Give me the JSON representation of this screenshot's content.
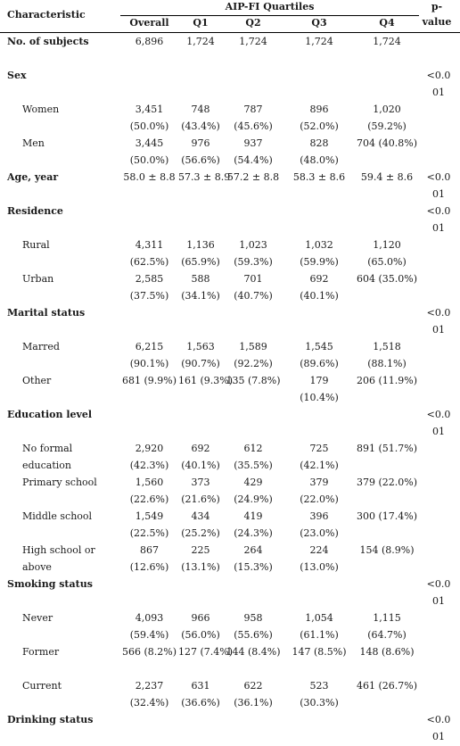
{
  "header": {
    "characteristic": "Characteristic",
    "quartiles_title": "AIP-FI Quartiles",
    "p_value": [
      "p-",
      "value"
    ],
    "columns": [
      "Overall",
      "Q1",
      "Q2",
      "Q3",
      "Q4"
    ]
  },
  "rows": [
    {
      "label": [
        "No. of subjects"
      ],
      "bold": true,
      "cells": [
        [
          "6,896"
        ],
        [
          "1,724"
        ],
        [
          "1,724"
        ],
        [
          "1,724"
        ],
        [
          "1,724"
        ]
      ],
      "p": []
    },
    {
      "label": [
        "Sex"
      ],
      "bold": true,
      "cells": [
        [],
        [],
        [],
        [],
        []
      ],
      "p": [
        "<0.0",
        "01"
      ]
    },
    {
      "label": [
        "Women"
      ],
      "sub": true,
      "cells": [
        [
          "3,451",
          "(50.0%)"
        ],
        [
          "748",
          "(43.4%)"
        ],
        [
          "787",
          "(45.6%)"
        ],
        [
          "896",
          "(52.0%)"
        ],
        [
          "1,020",
          "(59.2%)"
        ]
      ],
      "p": []
    },
    {
      "label": [
        "Men"
      ],
      "sub": true,
      "cells": [
        [
          "3,445",
          "(50.0%)"
        ],
        [
          "976",
          "(56.6%)"
        ],
        [
          "937",
          "(54.4%)"
        ],
        [
          "828",
          "(48.0%)"
        ],
        [
          "704 (40.8%)"
        ]
      ],
      "p": []
    },
    {
      "label": [
        "Age, year"
      ],
      "bold": true,
      "cells": [
        [
          "58.0 ± 8.8"
        ],
        [
          "57.3 ± 8.9"
        ],
        [
          "57.2 ± 8.8"
        ],
        [
          "58.3 ± 8.6"
        ],
        [
          "59.4 ± 8.6"
        ]
      ],
      "p": [
        "<0.0",
        "01"
      ]
    },
    {
      "label": [
        "Residence"
      ],
      "bold": true,
      "cells": [
        [],
        [],
        [],
        [],
        []
      ],
      "p": [
        "<0.0",
        "01"
      ]
    },
    {
      "label": [
        "Rural"
      ],
      "sub": true,
      "cells": [
        [
          "4,311",
          "(62.5%)"
        ],
        [
          "1,136",
          "(65.9%)"
        ],
        [
          "1,023",
          "(59.3%)"
        ],
        [
          "1,032",
          "(59.9%)"
        ],
        [
          "1,120",
          "(65.0%)"
        ]
      ],
      "p": []
    },
    {
      "label": [
        "Urban"
      ],
      "sub": true,
      "cells": [
        [
          "2,585",
          "(37.5%)"
        ],
        [
          "588",
          "(34.1%)"
        ],
        [
          "701",
          "(40.7%)"
        ],
        [
          "692",
          "(40.1%)"
        ],
        [
          "604 (35.0%)"
        ]
      ],
      "p": []
    },
    {
      "label": [
        "Marital status"
      ],
      "bold": true,
      "cells": [
        [],
        [],
        [],
        [],
        []
      ],
      "p": [
        "<0.0",
        "01"
      ]
    },
    {
      "label": [
        "Marred"
      ],
      "sub": true,
      "cells": [
        [
          "6,215",
          "(90.1%)"
        ],
        [
          "1,563",
          "(90.7%)"
        ],
        [
          "1,589",
          "(92.2%)"
        ],
        [
          "1,545",
          "(89.6%)"
        ],
        [
          "1,518",
          "(88.1%)"
        ]
      ],
      "p": []
    },
    {
      "label": [
        "Other"
      ],
      "sub": true,
      "cells": [
        [
          "681 (9.9%)"
        ],
        [
          "161 (9.3%)"
        ],
        [
          "135 (7.8%)"
        ],
        [
          "179",
          "(10.4%)"
        ],
        [
          "206 (11.9%)"
        ]
      ],
      "p": []
    },
    {
      "label": [
        "Education level"
      ],
      "bold": true,
      "cells": [
        [],
        [],
        [],
        [],
        []
      ],
      "p": [
        "<0.0",
        "01"
      ]
    },
    {
      "label": [
        "No formal",
        "education"
      ],
      "sub": true,
      "cells": [
        [
          "2,920",
          "(42.3%)"
        ],
        [
          "692",
          "(40.1%)"
        ],
        [
          "612",
          "(35.5%)"
        ],
        [
          "725",
          "(42.1%)"
        ],
        [
          "891 (51.7%)"
        ]
      ],
      "p": []
    },
    {
      "label": [
        "Primary school"
      ],
      "sub": true,
      "cells": [
        [
          "1,560",
          "(22.6%)"
        ],
        [
          "373",
          "(21.6%)"
        ],
        [
          "429",
          "(24.9%)"
        ],
        [
          "379",
          "(22.0%)"
        ],
        [
          "379 (22.0%)"
        ]
      ],
      "p": []
    },
    {
      "label": [
        "Middle school"
      ],
      "sub": true,
      "cells": [
        [
          "1,549",
          "(22.5%)"
        ],
        [
          "434",
          "(25.2%)"
        ],
        [
          "419",
          "(24.3%)"
        ],
        [
          "396",
          "(23.0%)"
        ],
        [
          "300 (17.4%)"
        ]
      ],
      "p": []
    },
    {
      "label": [
        "High school or",
        "above"
      ],
      "sub": true,
      "cells": [
        [
          "867",
          "(12.6%)"
        ],
        [
          "225",
          "(13.1%)"
        ],
        [
          "264",
          "(15.3%)"
        ],
        [
          "224",
          "(13.0%)"
        ],
        [
          "154 (8.9%)"
        ]
      ],
      "p": []
    },
    {
      "label": [
        "Smoking status"
      ],
      "bold": true,
      "cells": [
        [],
        [],
        [],
        [],
        []
      ],
      "p": [
        "<0.0",
        "01"
      ]
    },
    {
      "label": [
        "Never"
      ],
      "sub": true,
      "cells": [
        [
          "4,093",
          "(59.4%)"
        ],
        [
          "966",
          "(56.0%)"
        ],
        [
          "958",
          "(55.6%)"
        ],
        [
          "1,054",
          "(61.1%)"
        ],
        [
          "1,115",
          "(64.7%)"
        ]
      ],
      "p": []
    },
    {
      "label": [
        "Former"
      ],
      "sub": true,
      "cells": [
        [
          "566 (8.2%)"
        ],
        [
          "127 (7.4%)"
        ],
        [
          "144 (8.4%)"
        ],
        [
          "147 (8.5%)"
        ],
        [
          "148 (8.6%)"
        ]
      ],
      "p": []
    },
    {
      "label": [
        "Current"
      ],
      "sub": true,
      "cells": [
        [
          "2,237",
          "(32.4%)"
        ],
        [
          "631",
          "(36.6%)"
        ],
        [
          "622",
          "(36.1%)"
        ],
        [
          "523",
          "(30.3%)"
        ],
        [
          "461 (26.7%)"
        ]
      ],
      "p": []
    },
    {
      "label": [
        "Drinking status"
      ],
      "bold": true,
      "cells": [
        [],
        [],
        [],
        [],
        []
      ],
      "p": [
        "<0.0",
        "01"
      ]
    }
  ]
}
